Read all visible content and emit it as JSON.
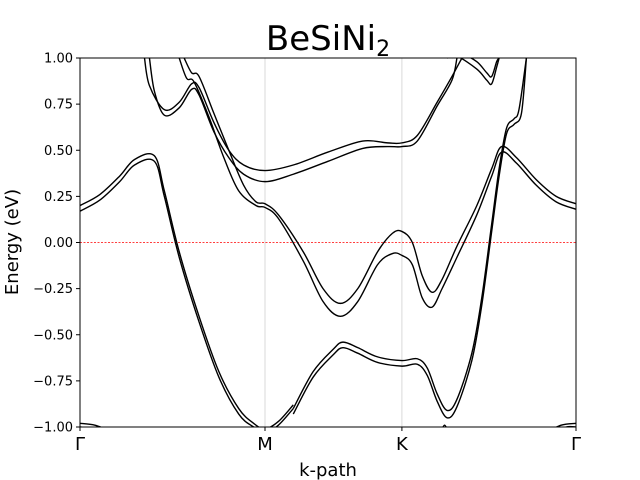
{
  "chart_data": {
    "type": "line",
    "title_main": "BeSiNi",
    "title_subscript": "2",
    "xlabel": "k-path",
    "ylabel": "Energy (eV)",
    "ylim": [
      -1.0,
      1.0
    ],
    "xlim": [
      0,
      1
    ],
    "yticks": [
      "1.00",
      "0.75",
      "0.50",
      "0.25",
      "0.00",
      "−0.25",
      "−0.50",
      "−0.75",
      "−1.00"
    ],
    "ytick_values": [
      1.0,
      0.75,
      0.5,
      0.25,
      0.0,
      -0.25,
      -0.5,
      -0.75,
      -1.0
    ],
    "kpoints": [
      {
        "label": "Γ",
        "x": 0.0
      },
      {
        "label": "M",
        "x": 0.373
      },
      {
        "label": "K",
        "x": 0.649
      },
      {
        "label": "Γ",
        "x": 1.0
      }
    ],
    "fermi_level": 0.0,
    "grid": "vertical lines at high-symmetry k-points",
    "colors": {
      "bands": "#000000",
      "fermi": "#ff0000",
      "kline": "#d9d9d9"
    },
    "series": [
      {
        "values": [
          [
            0.0,
            0.2
          ],
          [
            0.04,
            0.26
          ],
          [
            0.08,
            0.36
          ],
          [
            0.11,
            0.45
          ],
          [
            0.15,
            0.47
          ],
          [
            0.17,
            0.28
          ],
          [
            0.2,
            -0.05
          ],
          [
            0.24,
            -0.4
          ],
          [
            0.28,
            -0.7
          ],
          [
            0.32,
            -0.9
          ],
          [
            0.35,
            -0.98
          ],
          [
            0.373,
            -1.01
          ],
          [
            0.4,
            -0.97
          ],
          [
            0.43,
            -0.88
          ]
        ]
      },
      {
        "values": [
          [
            0.0,
            0.17
          ],
          [
            0.04,
            0.23
          ],
          [
            0.08,
            0.33
          ],
          [
            0.11,
            0.42
          ],
          [
            0.15,
            0.44
          ],
          [
            0.17,
            0.25
          ],
          [
            0.2,
            -0.08
          ],
          [
            0.24,
            -0.43
          ],
          [
            0.28,
            -0.73
          ],
          [
            0.32,
            -0.93
          ],
          [
            0.35,
            -1.0
          ],
          [
            0.373,
            -1.03
          ],
          [
            0.4,
            -0.99
          ],
          [
            0.43,
            -0.9
          ]
        ]
      },
      {
        "values": [
          [
            0.13,
            1.0
          ],
          [
            0.14,
            0.85
          ],
          [
            0.17,
            0.72
          ],
          [
            0.2,
            0.76
          ],
          [
            0.225,
            0.86
          ],
          [
            0.24,
            0.84
          ],
          [
            0.27,
            0.65
          ],
          [
            0.3,
            0.5
          ],
          [
            0.33,
            0.42
          ],
          [
            0.373,
            0.39
          ],
          [
            0.43,
            0.42
          ],
          [
            0.5,
            0.49
          ],
          [
            0.57,
            0.55
          ],
          [
            0.62,
            0.54
          ],
          [
            0.649,
            0.54
          ],
          [
            0.68,
            0.58
          ],
          [
            0.72,
            0.76
          ],
          [
            0.75,
            0.9
          ],
          [
            0.77,
            1.0
          ]
        ]
      },
      {
        "values": [
          [
            0.14,
            1.0
          ],
          [
            0.15,
            0.82
          ],
          [
            0.17,
            0.69
          ],
          [
            0.2,
            0.73
          ],
          [
            0.225,
            0.83
          ],
          [
            0.24,
            0.8
          ],
          [
            0.27,
            0.6
          ],
          [
            0.3,
            0.46
          ],
          [
            0.33,
            0.37
          ],
          [
            0.373,
            0.33
          ],
          [
            0.43,
            0.37
          ],
          [
            0.5,
            0.44
          ],
          [
            0.57,
            0.51
          ],
          [
            0.62,
            0.52
          ],
          [
            0.649,
            0.52
          ],
          [
            0.68,
            0.55
          ],
          [
            0.72,
            0.74
          ],
          [
            0.75,
            0.88
          ],
          [
            0.76,
            1.0
          ]
        ]
      },
      {
        "values": [
          [
            0.21,
            1.0
          ],
          [
            0.225,
            0.92
          ],
          [
            0.24,
            0.9
          ],
          [
            0.27,
            0.7
          ],
          [
            0.3,
            0.5
          ],
          [
            0.33,
            0.31
          ],
          [
            0.355,
            0.22
          ],
          [
            0.373,
            0.21
          ],
          [
            0.4,
            0.15
          ],
          [
            0.45,
            -0.05
          ],
          [
            0.49,
            -0.25
          ],
          [
            0.525,
            -0.33
          ],
          [
            0.56,
            -0.25
          ],
          [
            0.6,
            -0.05
          ],
          [
            0.63,
            0.05
          ],
          [
            0.649,
            0.06
          ],
          [
            0.67,
            0.0
          ],
          [
            0.69,
            -0.18
          ],
          [
            0.71,
            -0.27
          ],
          [
            0.73,
            -0.2
          ],
          [
            0.76,
            -0.02
          ],
          [
            0.8,
            0.2
          ],
          [
            0.83,
            0.4
          ],
          [
            0.85,
            0.52
          ],
          [
            0.88,
            0.46
          ],
          [
            0.92,
            0.34
          ],
          [
            0.96,
            0.25
          ],
          [
            1.0,
            0.21
          ]
        ]
      },
      {
        "values": [
          [
            0.2,
            1.0
          ],
          [
            0.215,
            0.89
          ],
          [
            0.23,
            0.87
          ],
          [
            0.26,
            0.68
          ],
          [
            0.29,
            0.46
          ],
          [
            0.32,
            0.28
          ],
          [
            0.355,
            0.2
          ],
          [
            0.373,
            0.19
          ],
          [
            0.4,
            0.13
          ],
          [
            0.45,
            -0.1
          ],
          [
            0.49,
            -0.32
          ],
          [
            0.525,
            -0.4
          ],
          [
            0.56,
            -0.32
          ],
          [
            0.6,
            -0.12
          ],
          [
            0.63,
            -0.06
          ],
          [
            0.649,
            -0.07
          ],
          [
            0.67,
            -0.12
          ],
          [
            0.69,
            -0.3
          ],
          [
            0.71,
            -0.35
          ],
          [
            0.73,
            -0.25
          ],
          [
            0.76,
            -0.08
          ],
          [
            0.8,
            0.15
          ],
          [
            0.83,
            0.36
          ],
          [
            0.85,
            0.49
          ],
          [
            0.88,
            0.43
          ],
          [
            0.92,
            0.31
          ],
          [
            0.96,
            0.22
          ],
          [
            1.0,
            0.18
          ]
        ]
      },
      {
        "values": [
          [
            0.43,
            -0.9
          ],
          [
            0.47,
            -0.7
          ],
          [
            0.51,
            -0.58
          ],
          [
            0.53,
            -0.54
          ],
          [
            0.56,
            -0.57
          ],
          [
            0.6,
            -0.62
          ],
          [
            0.649,
            -0.64
          ],
          [
            0.68,
            -0.63
          ],
          [
            0.7,
            -0.68
          ],
          [
            0.72,
            -0.82
          ],
          [
            0.74,
            -0.91
          ],
          [
            0.76,
            -0.85
          ],
          [
            0.79,
            -0.6
          ],
          [
            0.81,
            -0.3
          ],
          [
            0.83,
            0.1
          ],
          [
            0.845,
            0.4
          ],
          [
            0.86,
            0.62
          ],
          [
            0.875,
            0.67
          ],
          [
            0.885,
            0.72
          ],
          [
            0.9,
            1.0
          ]
        ]
      },
      {
        "values": [
          [
            0.43,
            -0.93
          ],
          [
            0.47,
            -0.73
          ],
          [
            0.51,
            -0.61
          ],
          [
            0.53,
            -0.57
          ],
          [
            0.56,
            -0.6
          ],
          [
            0.6,
            -0.65
          ],
          [
            0.649,
            -0.67
          ],
          [
            0.68,
            -0.66
          ],
          [
            0.7,
            -0.72
          ],
          [
            0.72,
            -0.86
          ],
          [
            0.74,
            -0.95
          ],
          [
            0.76,
            -0.89
          ],
          [
            0.79,
            -0.64
          ],
          [
            0.81,
            -0.34
          ],
          [
            0.83,
            0.06
          ],
          [
            0.845,
            0.36
          ],
          [
            0.86,
            0.59
          ],
          [
            0.875,
            0.64
          ],
          [
            0.89,
            0.7
          ],
          [
            0.9,
            1.0
          ]
        ]
      },
      {
        "values": [
          [
            0.75,
            1.0
          ],
          [
            0.77,
            1.02
          ],
          [
            0.8,
            0.98
          ],
          [
            0.82,
            0.92
          ],
          [
            0.83,
            0.9
          ],
          [
            0.84,
            0.98
          ],
          [
            0.845,
            1.0
          ]
        ]
      },
      {
        "values": [
          [
            0.74,
            1.0
          ],
          [
            0.76,
            1.01
          ],
          [
            0.8,
            0.94
          ],
          [
            0.82,
            0.88
          ],
          [
            0.83,
            0.86
          ],
          [
            0.84,
            0.95
          ],
          [
            0.845,
            1.0
          ]
        ]
      },
      {
        "values": [
          [
            0.0,
            -0.98
          ],
          [
            0.03,
            -0.99
          ],
          [
            0.06,
            -1.02
          ]
        ]
      },
      {
        "values": [
          [
            0.0,
            -1.0
          ],
          [
            0.03,
            -1.01
          ],
          [
            0.05,
            -1.03
          ]
        ]
      },
      {
        "values": [
          [
            0.94,
            -1.03
          ],
          [
            0.97,
            -0.99
          ],
          [
            1.0,
            -0.98
          ]
        ]
      },
      {
        "values": [
          [
            0.95,
            -1.03
          ],
          [
            0.98,
            -1.0
          ],
          [
            1.0,
            -1.0
          ]
        ]
      },
      {
        "values": [
          [
            0.73,
            -1.01
          ],
          [
            0.735,
            -0.99
          ],
          [
            0.74,
            -1.01
          ]
        ]
      }
    ]
  }
}
